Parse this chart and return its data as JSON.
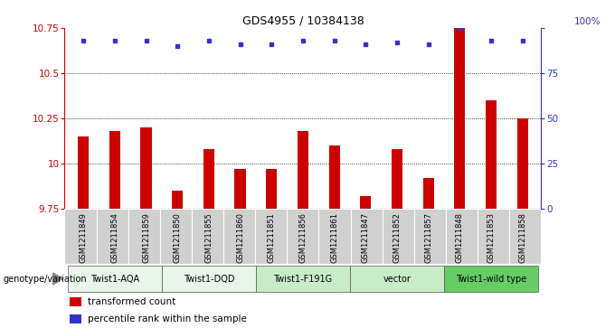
{
  "title": "GDS4955 / 10384138",
  "samples": [
    "GSM1211849",
    "GSM1211854",
    "GSM1211859",
    "GSM1211850",
    "GSM1211855",
    "GSM1211860",
    "GSM1211851",
    "GSM1211856",
    "GSM1211861",
    "GSM1211847",
    "GSM1211852",
    "GSM1211857",
    "GSM1211848",
    "GSM1211853",
    "GSM1211858"
  ],
  "bar_values": [
    10.15,
    10.18,
    10.2,
    9.85,
    10.08,
    9.97,
    9.97,
    10.18,
    10.1,
    9.82,
    10.08,
    9.92,
    10.75,
    10.35,
    10.25
  ],
  "percentile_values": [
    93,
    93,
    93,
    90,
    93,
    91,
    91,
    93,
    93,
    91,
    92,
    91,
    100,
    93,
    93
  ],
  "ylim_left": [
    9.75,
    10.75
  ],
  "ylim_right": [
    0,
    100
  ],
  "yticks_left": [
    9.75,
    10.0,
    10.25,
    10.5,
    10.75
  ],
  "yticks_right": [
    0,
    25,
    50,
    75,
    100
  ],
  "ytick_labels_left": [
    "9.75",
    "10",
    "10.25",
    "10.5",
    "10.75"
  ],
  "ytick_labels_right": [
    "0",
    "25",
    "50",
    "75",
    ""
  ],
  "bar_color": "#cc0000",
  "dot_color": "#3333cc",
  "dot_size": 15,
  "bar_width": 0.35,
  "groups": [
    {
      "label": "Twist1-AQA",
      "start": 0,
      "end": 3,
      "color": "#e8f5e8"
    },
    {
      "label": "Twist1-DQD",
      "start": 3,
      "end": 6,
      "color": "#e8f5e8"
    },
    {
      "label": "Twist1-F191G",
      "start": 6,
      "end": 9,
      "color": "#c8ecc8"
    },
    {
      "label": "vector",
      "start": 9,
      "end": 12,
      "color": "#c8ecc8"
    },
    {
      "label": "Twist1-wild type",
      "start": 12,
      "end": 15,
      "color": "#66cc66"
    }
  ],
  "sample_box_color": "#d0d0d0",
  "legend_bar_label": "transformed count",
  "legend_dot_label": "percentile rank within the sample",
  "genotype_label": "genotype/variation",
  "title_fontsize": 9,
  "axis_fontsize": 7.5,
  "label_fontsize": 6,
  "group_fontsize": 7,
  "legend_fontsize": 7.5,
  "grid_yticks": [
    10.0,
    10.25,
    10.5
  ],
  "top_label": "100%"
}
